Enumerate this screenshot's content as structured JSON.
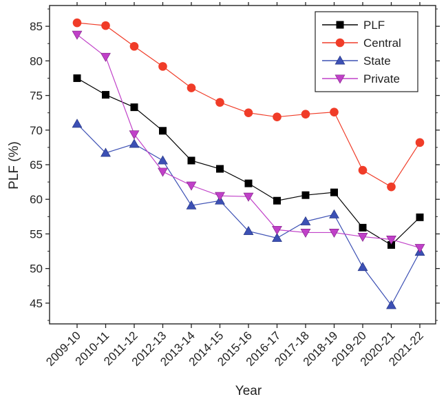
{
  "chart_data": {
    "type": "line",
    "title": "",
    "xlabel": "Year",
    "ylabel": "PLF (%)",
    "categories": [
      "2009-10",
      "2010-11",
      "2011-12",
      "2012-13",
      "2013-14",
      "2014-15",
      "2015-16",
      "2016-17",
      "2017-18",
      "2018-19",
      "2019-20",
      "2020-21",
      "2021-22"
    ],
    "ylim": [
      42,
      88
    ],
    "yticks": [
      45,
      50,
      55,
      60,
      65,
      70,
      75,
      80,
      85
    ],
    "grid": false,
    "legend_position": "top-right",
    "series": [
      {
        "name": "PLF",
        "color": "#000000",
        "marker": "square",
        "values": [
          77.5,
          75.1,
          73.3,
          69.9,
          65.6,
          64.4,
          62.3,
          59.8,
          60.6,
          61.0,
          55.9,
          53.4,
          57.4
        ]
      },
      {
        "name": "Central",
        "color": "#f03c28",
        "marker": "circle",
        "values": [
          85.5,
          85.1,
          82.1,
          79.2,
          76.1,
          74.0,
          72.5,
          71.9,
          72.3,
          72.6,
          64.2,
          61.8,
          68.2
        ]
      },
      {
        "name": "State",
        "color": "#3c50b4",
        "marker": "triangle-up",
        "values": [
          70.9,
          66.7,
          68.0,
          65.6,
          59.1,
          59.8,
          55.4,
          54.4,
          56.8,
          57.8,
          50.2,
          44.7,
          52.4
        ]
      },
      {
        "name": "Private",
        "color": "#c040c8",
        "marker": "triangle-down",
        "values": [
          83.8,
          80.6,
          69.4,
          64.0,
          62.0,
          60.5,
          60.4,
          55.6,
          55.2,
          55.2,
          54.6,
          54.2,
          53.0
        ]
      }
    ]
  }
}
